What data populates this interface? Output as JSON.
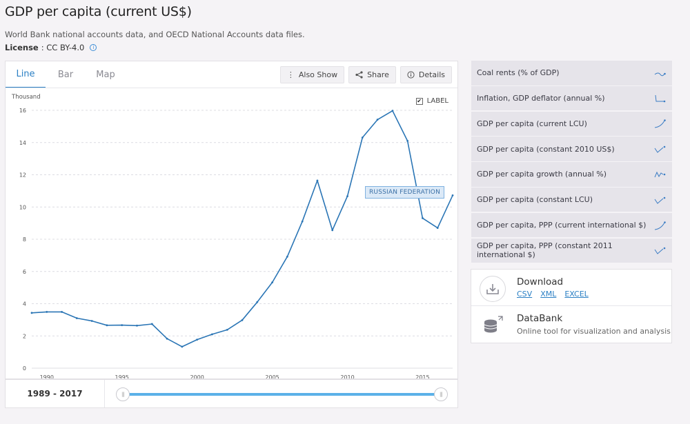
{
  "header": {
    "title": "GDP per capita (current US$)",
    "source": "World Bank national accounts data, and OECD National Accounts data files.",
    "license_label": "License",
    "license_value": ": CC BY-4.0"
  },
  "tabs": [
    {
      "label": "Line",
      "active": true
    },
    {
      "label": "Bar",
      "active": false
    },
    {
      "label": "Map",
      "active": false
    }
  ],
  "tools": {
    "also_show": "Also Show",
    "share": "Share",
    "details": "Details"
  },
  "chart_options": {
    "unit_label": "Thousand",
    "label_toggle": "LABEL",
    "label_checked": true
  },
  "series_tag": "RUSSIAN FEDERATION",
  "range": {
    "label": "1989 - 2017",
    "start": 1989,
    "end": 2017
  },
  "chart_data": {
    "type": "line",
    "title": "GDP per capita (current US$)",
    "ylabel": "Thousand",
    "ylim": [
      0,
      16
    ],
    "yticks": [
      0,
      2,
      4,
      6,
      8,
      10,
      12,
      14,
      16
    ],
    "xlim": [
      1989,
      2017
    ],
    "xticks": [
      1990,
      1995,
      2000,
      2005,
      2010,
      2015
    ],
    "grid": true,
    "line_color": "#2a75b5",
    "series": [
      {
        "name": "RUSSIAN FEDERATION",
        "x": [
          1989,
          1990,
          1991,
          1992,
          1993,
          1994,
          1995,
          1996,
          1997,
          1998,
          1999,
          2000,
          2001,
          2002,
          2003,
          2004,
          2005,
          2006,
          2007,
          2008,
          2009,
          2010,
          2011,
          2012,
          2013,
          2014,
          2015,
          2016,
          2017
        ],
        "values": [
          3.43,
          3.49,
          3.49,
          3.1,
          2.93,
          2.66,
          2.67,
          2.64,
          2.74,
          1.83,
          1.33,
          1.77,
          2.1,
          2.38,
          2.98,
          4.1,
          5.32,
          6.92,
          9.1,
          11.64,
          8.56,
          10.67,
          14.31,
          15.42,
          15.97,
          14.1,
          9.31,
          8.7,
          10.72
        ]
      }
    ]
  },
  "related": [
    {
      "label": "Coal rents (% of GDP)",
      "spark": "spark-down-icon"
    },
    {
      "label": "Inflation, GDP deflator (annual %)",
      "spark": "spark-drop-icon"
    },
    {
      "label": "GDP per capita (current LCU)",
      "spark": "spark-up-icon"
    },
    {
      "label": "GDP per capita (constant 2010 US$)",
      "spark": "spark-check-icon"
    },
    {
      "label": "GDP per capita growth (annual %)",
      "spark": "spark-wave-icon"
    },
    {
      "label": "GDP per capita (constant LCU)",
      "spark": "spark-check-icon"
    },
    {
      "label": "GDP per capita, PPP (current international $)",
      "spark": "spark-up-icon"
    },
    {
      "label": "GDP per capita, PPP (constant 2011 international $)",
      "spark": "spark-check-icon"
    }
  ],
  "download": {
    "title": "Download",
    "links": [
      "CSV",
      "XML",
      "EXCEL"
    ]
  },
  "databank": {
    "title": "DataBank",
    "subtitle": "Online tool for visualization and analysis"
  }
}
